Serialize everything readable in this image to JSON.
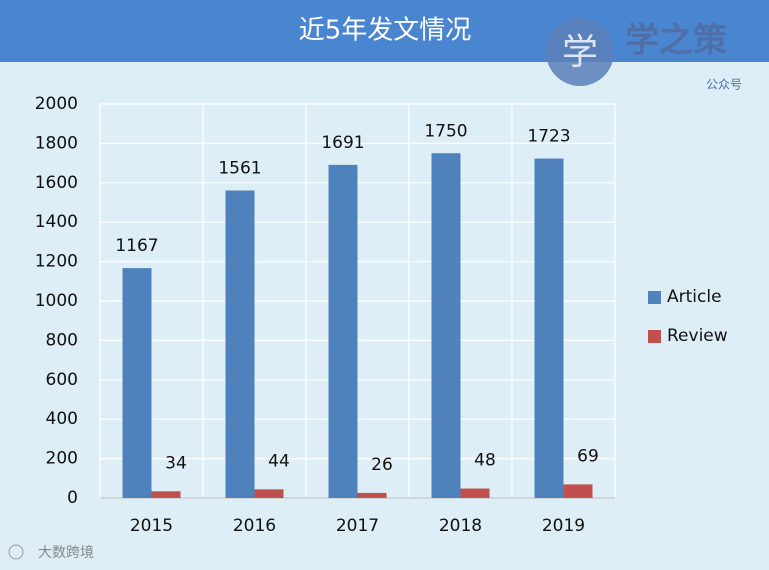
{
  "chart_data": {
    "type": "bar",
    "title": "近5年发文情况",
    "categories": [
      "2015",
      "2016",
      "2017",
      "2018",
      "2019"
    ],
    "series": [
      {
        "name": "Article",
        "color": "#4f81bd",
        "values": [
          1167,
          1561,
          1691,
          1750,
          1723
        ]
      },
      {
        "name": "Review",
        "color": "#c0504d",
        "values": [
          34,
          44,
          26,
          48,
          69
        ]
      }
    ],
    "ylim": [
      0,
      2000
    ],
    "yticks": [
      0,
      200,
      400,
      600,
      800,
      1000,
      1200,
      1400,
      1600,
      1800,
      2000
    ],
    "grid": true,
    "legend": "right"
  },
  "watermark": {
    "brand": "学之策",
    "sub": "公众号",
    "footer": "大数跨境"
  }
}
